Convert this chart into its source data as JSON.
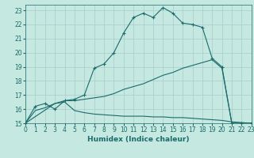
{
  "xlabel": "Humidex (Indice chaleur)",
  "background_color": "#c5e8e0",
  "grid_color": "#a8cccc",
  "line_color": "#1a6b6b",
  "xlim": [
    0,
    23
  ],
  "ylim": [
    15,
    23.4
  ],
  "xticks": [
    0,
    1,
    2,
    3,
    4,
    5,
    6,
    7,
    8,
    9,
    10,
    11,
    12,
    13,
    14,
    15,
    16,
    17,
    18,
    19,
    20,
    21,
    22,
    23
  ],
  "yticks": [
    15,
    16,
    17,
    18,
    19,
    20,
    21,
    22,
    23
  ],
  "curve1_x": [
    0,
    1,
    2,
    3,
    4,
    5,
    6,
    7,
    8,
    9,
    10,
    11,
    12,
    13,
    14,
    15,
    16,
    17,
    18,
    19,
    20,
    21,
    22,
    23
  ],
  "curve1_y": [
    15.0,
    16.2,
    16.4,
    16.0,
    16.6,
    16.7,
    17.0,
    18.9,
    19.2,
    20.0,
    21.4,
    22.5,
    22.8,
    22.5,
    23.2,
    22.8,
    22.1,
    22.0,
    21.8,
    19.6,
    19.0,
    15.0,
    15.0,
    15.0
  ],
  "curve2_x": [
    0,
    3,
    4,
    5,
    6,
    7,
    8,
    9,
    10,
    11,
    12,
    13,
    14,
    15,
    16,
    17,
    18,
    19,
    20,
    21,
    22,
    23
  ],
  "curve2_y": [
    15.0,
    16.4,
    16.6,
    16.6,
    16.7,
    16.8,
    16.9,
    17.1,
    17.4,
    17.6,
    17.8,
    18.1,
    18.4,
    18.6,
    18.9,
    19.1,
    19.3,
    19.5,
    18.9,
    15.0,
    15.0,
    15.0
  ],
  "curve3_x": [
    0,
    1,
    2,
    3,
    4,
    5,
    6,
    7,
    8,
    9,
    10,
    11,
    12,
    13,
    14,
    15,
    16,
    17,
    18,
    19,
    20,
    21,
    22,
    23
  ],
  "curve3_y": [
    15.0,
    15.9,
    16.1,
    16.4,
    16.5,
    15.9,
    15.75,
    15.65,
    15.6,
    15.55,
    15.5,
    15.5,
    15.5,
    15.45,
    15.45,
    15.4,
    15.4,
    15.35,
    15.3,
    15.25,
    15.2,
    15.1,
    15.05,
    15.0
  ]
}
